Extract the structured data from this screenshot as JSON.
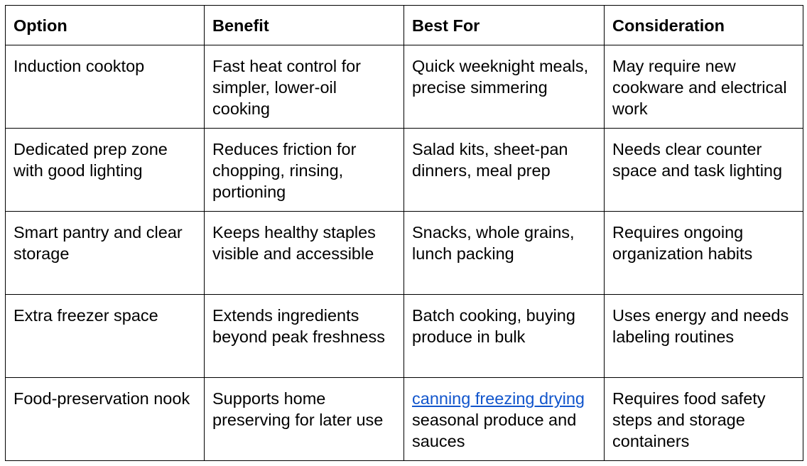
{
  "table": {
    "header": [
      "Option",
      "Benefit",
      "Best For",
      "Consideration"
    ],
    "rows": [
      [
        "Induction cooktop",
        "Fast heat control for simpler, lower-oil cooking",
        "Quick weeknight meals, precise simmering",
        "May require new cookware and electrical work"
      ],
      [
        "Dedicated prep zone with good lighting",
        "Reduces friction for chopping, rinsing, portioning",
        "Salad kits, sheet-pan dinners, meal prep",
        "Needs clear counter space and task lighting"
      ],
      [
        "Smart pantry and clear storage",
        "Keeps healthy staples visible and accessible",
        "Snacks, whole grains, lunch packing",
        "Requires ongoing organization habits"
      ],
      [
        "Extra freezer space",
        "Extends ingredients beyond peak freshness",
        "Batch cooking, buying produce in bulk",
        "Uses energy and needs labeling routines"
      ],
      [
        "Food-preservation nook",
        "Supports home preserving for later use",
        {
          "link": "canning freezing drying",
          "text": "seasonal produce and sauces"
        },
        "Requires food safety steps and storage containers"
      ]
    ]
  }
}
